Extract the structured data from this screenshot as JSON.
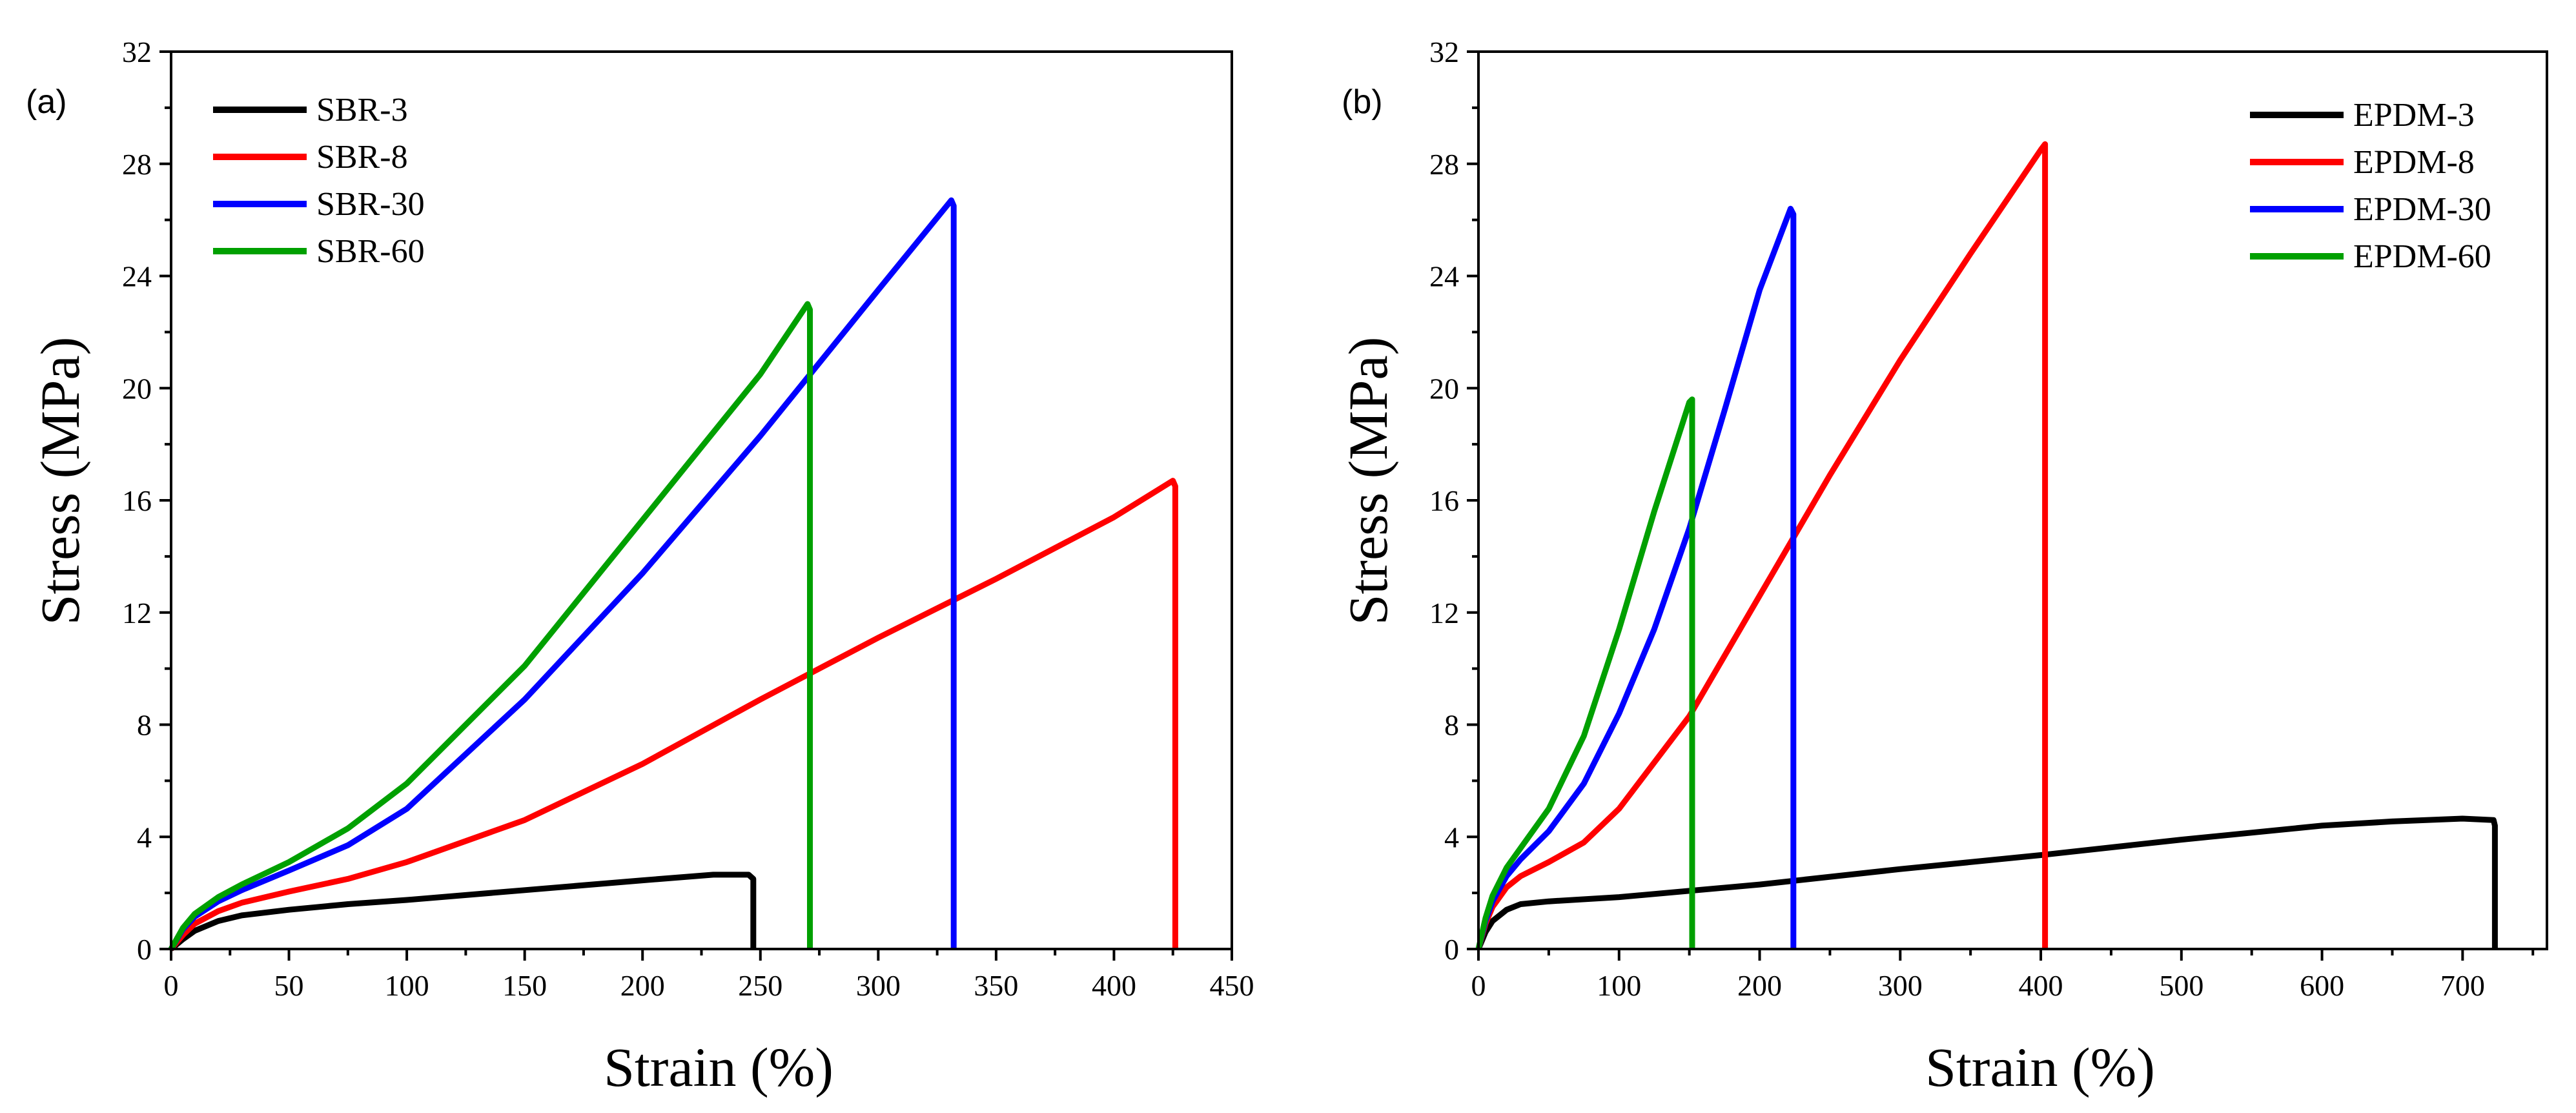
{
  "chart_data": [
    {
      "type": "line",
      "panel_label": "(a)",
      "xlabel": "Strain (%)",
      "ylabel": "Stress (MPa)",
      "xlim": [
        0,
        450
      ],
      "ylim": [
        0,
        32
      ],
      "xticks": [
        0,
        50,
        100,
        150,
        200,
        250,
        300,
        350,
        400,
        450
      ],
      "yticks": [
        0,
        4,
        8,
        12,
        16,
        20,
        24,
        28,
        32
      ],
      "grid": false,
      "legend_position": "top-left",
      "series": [
        {
          "name": "SBR-3",
          "color": "#000000",
          "x": [
            0,
            5,
            10,
            20,
            30,
            50,
            75,
            100,
            150,
            200,
            230,
            245,
            247,
            247
          ],
          "y": [
            0,
            0.35,
            0.65,
            1.0,
            1.2,
            1.4,
            1.6,
            1.75,
            2.1,
            2.45,
            2.65,
            2.65,
            2.5,
            0
          ]
        },
        {
          "name": "SBR-8",
          "color": "#ff0000",
          "x": [
            0,
            5,
            10,
            20,
            30,
            50,
            75,
            100,
            150,
            200,
            250,
            300,
            350,
            400,
            425,
            426,
            426
          ],
          "y": [
            0,
            0.5,
            0.9,
            1.35,
            1.65,
            2.05,
            2.5,
            3.1,
            4.6,
            6.6,
            8.9,
            11.1,
            13.2,
            15.4,
            16.7,
            16.5,
            0
          ]
        },
        {
          "name": "SBR-30",
          "color": "#0000ff",
          "x": [
            0,
            5,
            10,
            20,
            30,
            50,
            75,
            100,
            150,
            200,
            250,
            300,
            331,
            332,
            332
          ],
          "y": [
            0,
            0.7,
            1.15,
            1.7,
            2.1,
            2.8,
            3.7,
            5.0,
            8.9,
            13.4,
            18.3,
            23.5,
            26.7,
            26.5,
            0
          ]
        },
        {
          "name": "SBR-60",
          "color": "#00a000",
          "x": [
            0,
            5,
            10,
            20,
            30,
            50,
            75,
            100,
            150,
            200,
            250,
            270,
            271,
            271
          ],
          "y": [
            0,
            0.75,
            1.25,
            1.85,
            2.3,
            3.1,
            4.3,
            5.9,
            10.1,
            15.3,
            20.5,
            23.0,
            22.8,
            0
          ]
        }
      ]
    },
    {
      "type": "line",
      "panel_label": "(b)",
      "xlabel": "Strain (%)",
      "ylabel": "Stress (MPa)",
      "xlim": [
        0,
        760
      ],
      "ylim": [
        0,
        32
      ],
      "xticks": [
        0,
        100,
        200,
        300,
        400,
        500,
        600,
        700
      ],
      "yticks": [
        0,
        4,
        8,
        12,
        16,
        20,
        24,
        28,
        32
      ],
      "grid": false,
      "legend_position": "top-right",
      "series": [
        {
          "name": "EPDM-3",
          "color": "#000000",
          "x": [
            0,
            5,
            10,
            20,
            30,
            50,
            100,
            200,
            300,
            400,
            500,
            600,
            650,
            700,
            722,
            723,
            723
          ],
          "y": [
            0,
            0.6,
            1.0,
            1.4,
            1.6,
            1.7,
            1.85,
            2.3,
            2.85,
            3.35,
            3.9,
            4.4,
            4.55,
            4.65,
            4.6,
            4.4,
            0
          ]
        },
        {
          "name": "EPDM-8",
          "color": "#ff0000",
          "x": [
            0,
            5,
            10,
            20,
            30,
            50,
            75,
            100,
            150,
            200,
            250,
            300,
            350,
            400,
            403,
            403
          ],
          "y": [
            0,
            0.9,
            1.5,
            2.2,
            2.6,
            3.1,
            3.8,
            5.0,
            8.3,
            12.6,
            16.9,
            21.0,
            24.8,
            28.5,
            28.7,
            0
          ]
        },
        {
          "name": "EPDM-30",
          "color": "#0000ff",
          "x": [
            0,
            5,
            10,
            20,
            30,
            50,
            75,
            100,
            125,
            150,
            175,
            200,
            222,
            224,
            224
          ],
          "y": [
            0,
            1.0,
            1.7,
            2.6,
            3.2,
            4.2,
            5.9,
            8.4,
            11.4,
            15.0,
            19.2,
            23.5,
            26.4,
            26.2,
            0
          ]
        },
        {
          "name": "EPDM-60",
          "color": "#00a000",
          "x": [
            0,
            5,
            10,
            20,
            30,
            50,
            75,
            100,
            125,
            150,
            152,
            152
          ],
          "y": [
            0,
            1.1,
            1.9,
            2.9,
            3.6,
            5.0,
            7.6,
            11.4,
            15.6,
            19.5,
            19.6,
            0
          ]
        }
      ]
    }
  ]
}
